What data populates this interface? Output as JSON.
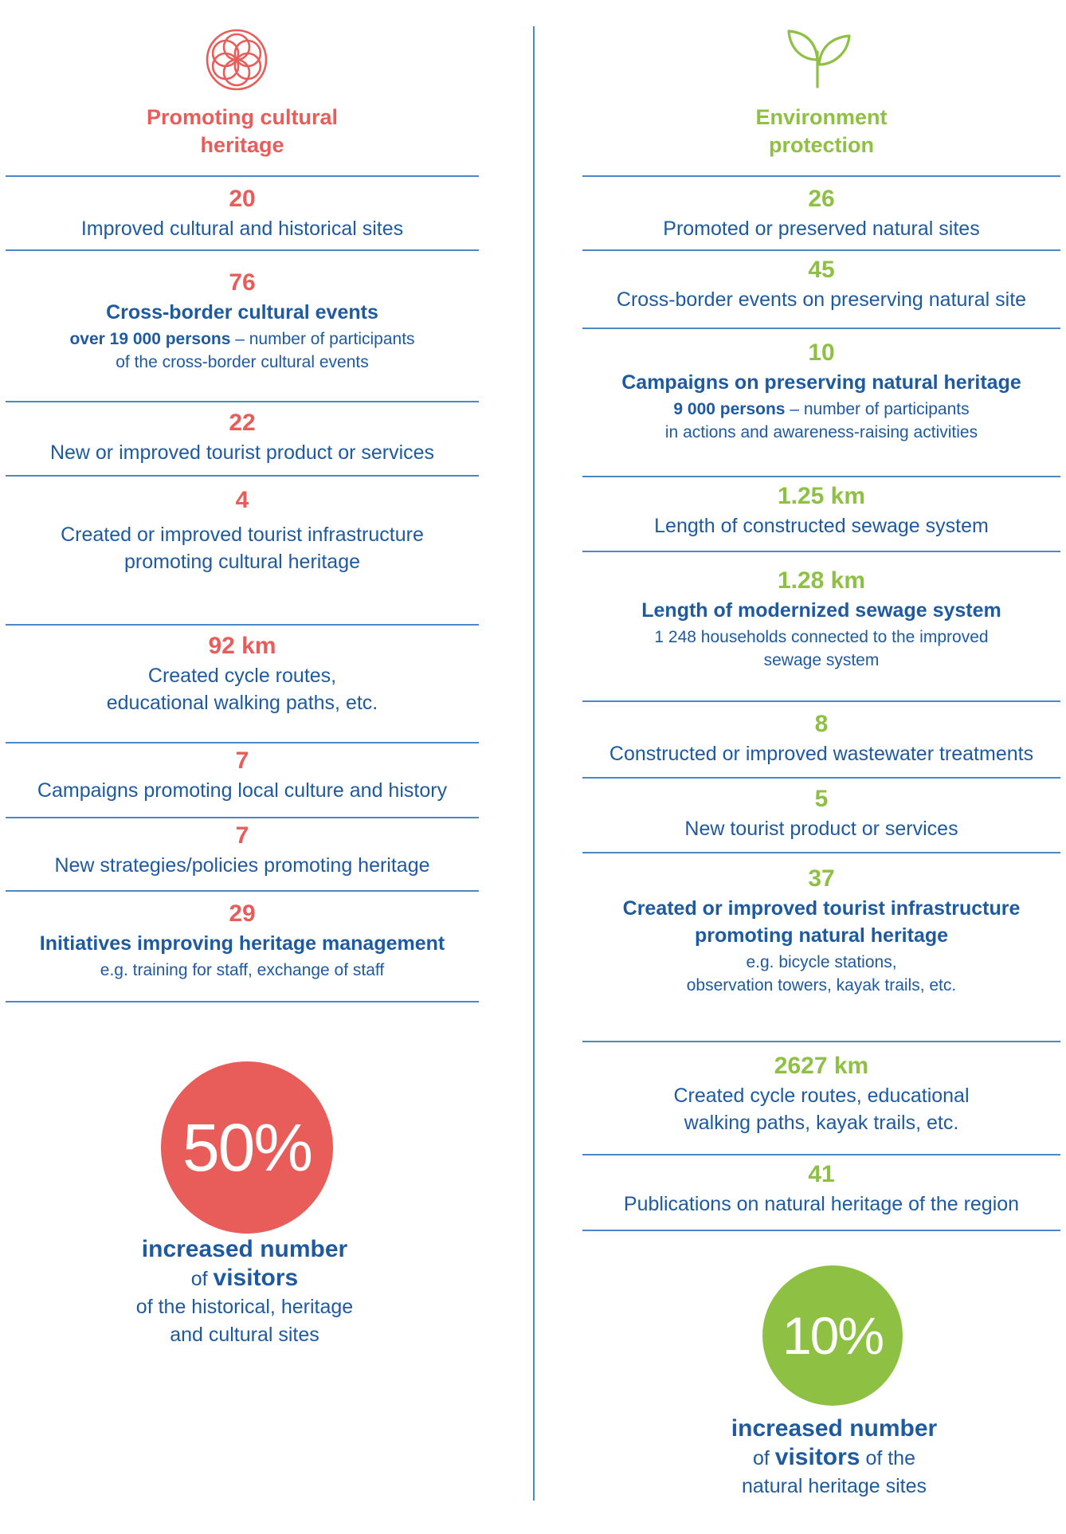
{
  "left": {
    "title": "Promoting cultural\nheritage",
    "items": [
      {
        "value": "20",
        "label": "Improved cultural and historical sites"
      },
      {
        "value": "76",
        "label": "Cross-border cultural events",
        "note_bold": "over 19 000 persons",
        "note": " – number of participants\nof the cross-border cultural events"
      },
      {
        "value": "22",
        "label": "New or improved tourist product or services"
      },
      {
        "value": "4",
        "label": "Created or improved tourist infrastructure\npromoting cultural heritage"
      },
      {
        "value": "92 km",
        "label": "Created cycle routes,\neducational walking paths, etc."
      },
      {
        "value": "7",
        "label": "Campaigns promoting local culture and history"
      },
      {
        "value": "7",
        "label": "New strategies/policies promoting heritage"
      },
      {
        "value": "29",
        "label": "Initiatives improving heritage management",
        "note": "e.g. training for staff, exchange of staff"
      }
    ],
    "circle_value": "50%",
    "summary": {
      "line1": "increased number",
      "line2_pre": "of ",
      "line2_bold": "visitors",
      "line2_post": "",
      "line3": "of the historical, heritage",
      "line4": "and cultural sites"
    }
  },
  "right": {
    "title": "Environment\nprotection",
    "items": [
      {
        "value": "26",
        "label": "Promoted or preserved natural sites"
      },
      {
        "value": "45",
        "label": "Cross-border events on preserving natural site"
      },
      {
        "value": "10",
        "label": "Campaigns on preserving natural heritage",
        "note_bold": "9 000 persons",
        "note": " – number of participants\nin actions and awareness-raising activities"
      },
      {
        "value": "1.25 km",
        "label": "Length of constructed sewage system"
      },
      {
        "value": "1.28 km",
        "label": "Length of modernized sewage system",
        "note": "1 248 households connected to the improved\nsewage system"
      },
      {
        "value": "8",
        "label": "Constructed or improved wastewater treatments"
      },
      {
        "value": "5",
        "label": "New tourist product or services"
      },
      {
        "value": "37",
        "label": "Created or improved tourist infrastructure\npromoting natural heritage",
        "note": "e.g. bicycle stations,\nobservation towers, kayak trails, etc."
      },
      {
        "value": "2627 km",
        "label": "Created cycle routes, educational\nwalking paths, kayak trails, etc."
      },
      {
        "value": "41",
        "label": "Publications on natural heritage of the region"
      }
    ],
    "circle_value": "10%",
    "summary": {
      "line1": "increased number",
      "line2_pre": "of ",
      "line2_bold": "visitors",
      "line2_post": " of the",
      "line3": "natural heritage sites",
      "line4": ""
    }
  },
  "colors": {
    "red": "#e85d59",
    "green": "#8dc043",
    "blue": "#1e5aa0",
    "rule": "#4e86c4"
  },
  "icons": {
    "left": "flower-of-life-icon",
    "right": "plant-sprout-icon"
  }
}
